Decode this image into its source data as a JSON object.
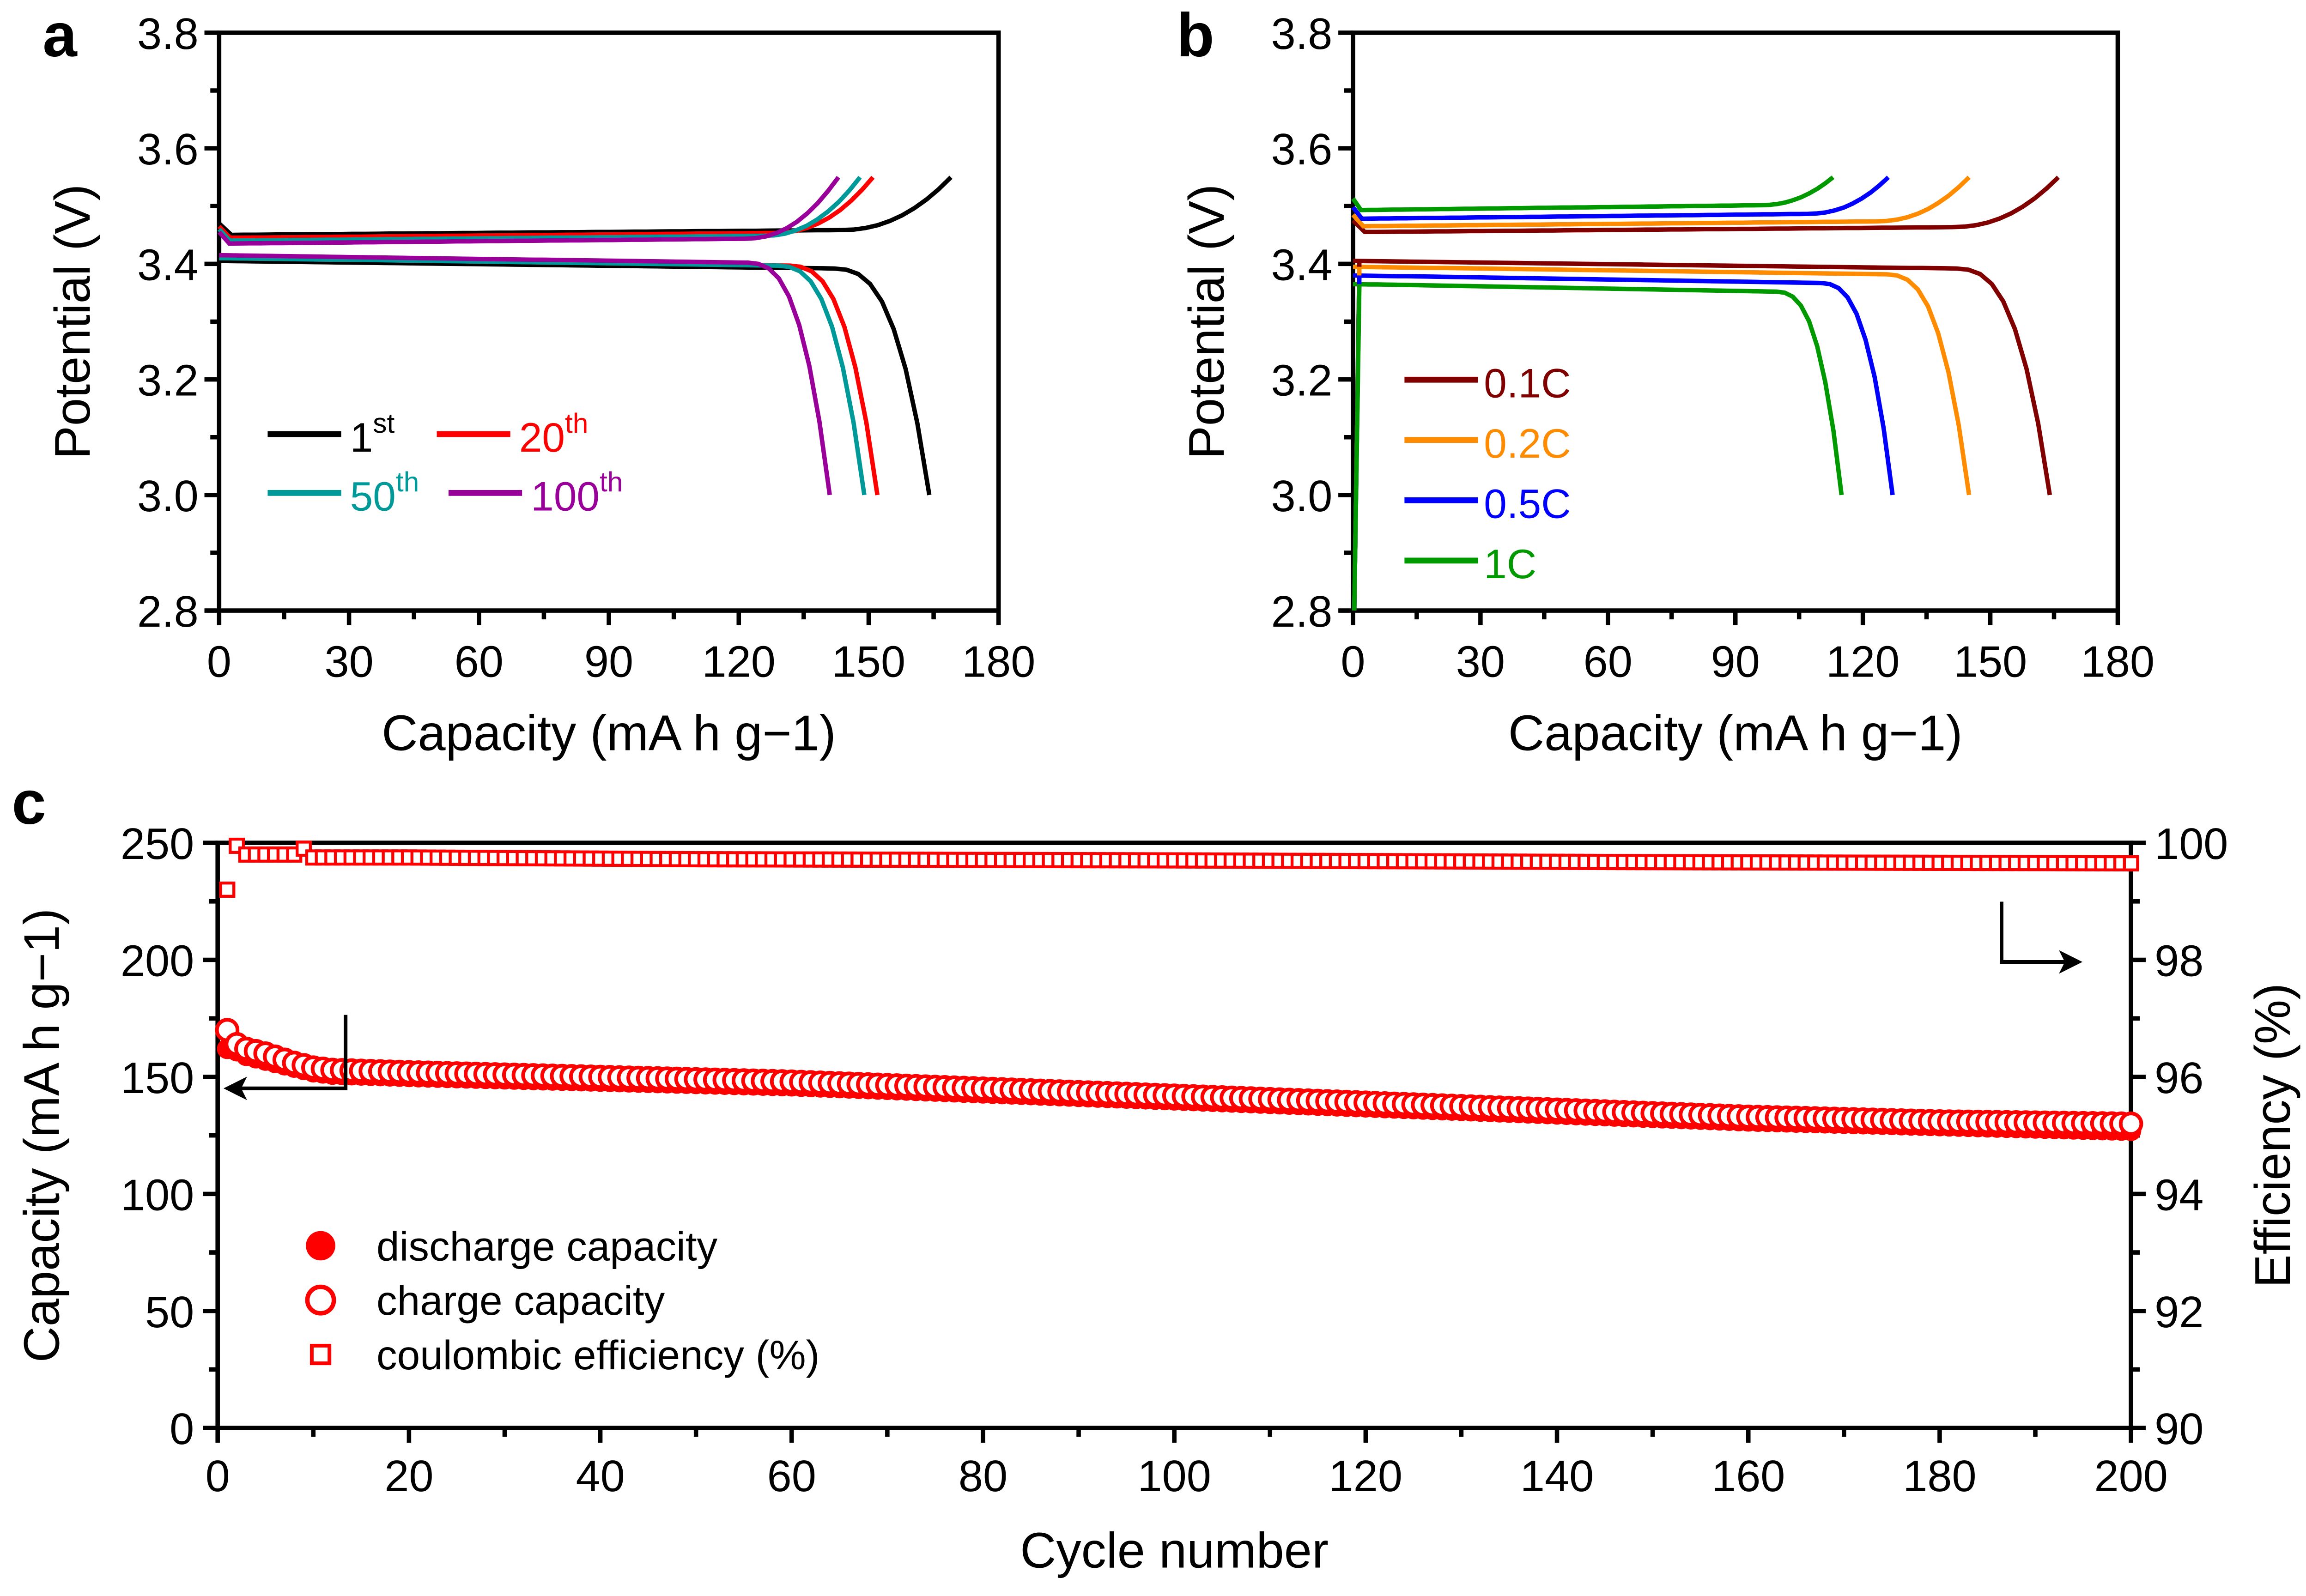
{
  "chart_data": [
    {
      "panel": "a",
      "type": "line",
      "xlabel": "Capacity (mA h g−1)",
      "ylabel": "Potential (V)",
      "xlim": [
        0,
        180
      ],
      "ylim": [
        2.8,
        3.8
      ],
      "xticks": [
        0,
        30,
        60,
        90,
        120,
        150,
        180
      ],
      "yticks": [
        2.8,
        3.0,
        3.2,
        3.4,
        3.6,
        3.8
      ],
      "legend_placement": "lower-left",
      "series": [
        {
          "name": "1st",
          "base": "1",
          "sup": "st",
          "color": "#000000",
          "charge_end": 169,
          "charge_plateau": 3.45,
          "discharge_end": 164,
          "discharge_plateau": 3.405
        },
        {
          "name": "20th",
          "base": "20",
          "sup": "th",
          "color": "#ff0000",
          "charge_end": 151,
          "charge_plateau": 3.445,
          "discharge_end": 152,
          "discharge_plateau": 3.41
        },
        {
          "name": "50th",
          "base": "50",
          "sup": "th",
          "color": "#009999",
          "charge_end": 148,
          "charge_plateau": 3.44,
          "discharge_end": 149,
          "discharge_plateau": 3.41
        },
        {
          "name": "100th",
          "base": "100",
          "sup": "th",
          "color": "#990099",
          "charge_end": 143,
          "charge_plateau": 3.435,
          "discharge_end": 141,
          "discharge_plateau": 3.415
        }
      ],
      "charge_cutoff": 3.55,
      "discharge_cutoff": 3.0
    },
    {
      "panel": "b",
      "type": "line",
      "xlabel": "Capacity (mA h g−1)",
      "ylabel": "Potential (V)",
      "xlim": [
        0,
        180
      ],
      "ylim": [
        2.8,
        3.8
      ],
      "xticks": [
        0,
        30,
        60,
        90,
        120,
        150,
        180
      ],
      "yticks": [
        2.8,
        3.0,
        3.2,
        3.4,
        3.6,
        3.8
      ],
      "legend_placement": "lower-left",
      "series": [
        {
          "name": "0.1C",
          "color": "#800000",
          "charge_end": 166,
          "charge_plateau": 3.455,
          "discharge_end": 164,
          "discharge_plateau": 3.405
        },
        {
          "name": "0.2C",
          "color": "#ff8c00",
          "charge_end": 145,
          "charge_plateau": 3.465,
          "discharge_end": 145,
          "discharge_plateau": 3.395
        },
        {
          "name": "0.5C",
          "color": "#0000ff",
          "charge_end": 126,
          "charge_plateau": 3.478,
          "discharge_end": 127,
          "discharge_plateau": 3.38
        },
        {
          "name": "1C",
          "color": "#009900",
          "charge_end": 113,
          "charge_plateau": 3.493,
          "discharge_end": 115,
          "discharge_plateau": 3.365
        }
      ],
      "charge_cutoff": 3.55,
      "discharge_cutoff": 3.0
    },
    {
      "panel": "c",
      "type": "scatter",
      "xlabel": "Cycle number",
      "ylabel": "Capacity (mA h g−1)",
      "ylabel_right": "Efficiency (%)",
      "xlim": [
        0,
        200
      ],
      "ylim": [
        0,
        250
      ],
      "ylim_right": [
        90,
        100
      ],
      "xticks": [
        0,
        20,
        40,
        60,
        80,
        100,
        120,
        140,
        160,
        180,
        200
      ],
      "yticks": [
        0,
        50,
        100,
        150,
        200,
        250
      ],
      "yticks_right": [
        90,
        92,
        94,
        96,
        98,
        100
      ],
      "legend_placement": "lower-left",
      "series": [
        {
          "name": "discharge capacity",
          "marker": "filled-circle",
          "color": "#ff0000",
          "x": [
            1,
            2,
            3,
            5,
            8,
            10,
            12,
            20,
            40,
            60,
            80,
            100,
            120,
            140,
            160,
            180,
            200
          ],
          "y": [
            162,
            161,
            159,
            157,
            154,
            152,
            151,
            150,
            148,
            146,
            143,
            140,
            137,
            134,
            131,
            129,
            127
          ]
        },
        {
          "name": "charge capacity",
          "marker": "open-circle",
          "color": "#ff0000",
          "x": [
            1,
            2,
            3,
            5,
            8,
            10,
            12,
            20,
            40,
            60,
            80,
            100,
            120,
            140,
            160,
            180,
            200
          ],
          "y": [
            170,
            164,
            162,
            160,
            156,
            154,
            153,
            152,
            150,
            148,
            145,
            142,
            139,
            136,
            133,
            131,
            130
          ]
        },
        {
          "name": "coulombic efficiency (%)",
          "marker": "open-square",
          "color": "#ff0000",
          "x": [
            1,
            2,
            3,
            5,
            8,
            9,
            10,
            20,
            50,
            100,
            150,
            200
          ],
          "y": [
            99.2,
            99.95,
            99.8,
            99.8,
            99.8,
            99.9,
            99.75,
            99.75,
            99.72,
            99.7,
            99.67,
            99.65
          ]
        }
      ],
      "annotations": [
        {
          "text": "arrow-left",
          "meaning": "capacity series read on left axis"
        },
        {
          "text": "arrow-right",
          "meaning": "efficiency series read on right axis"
        }
      ]
    }
  ]
}
